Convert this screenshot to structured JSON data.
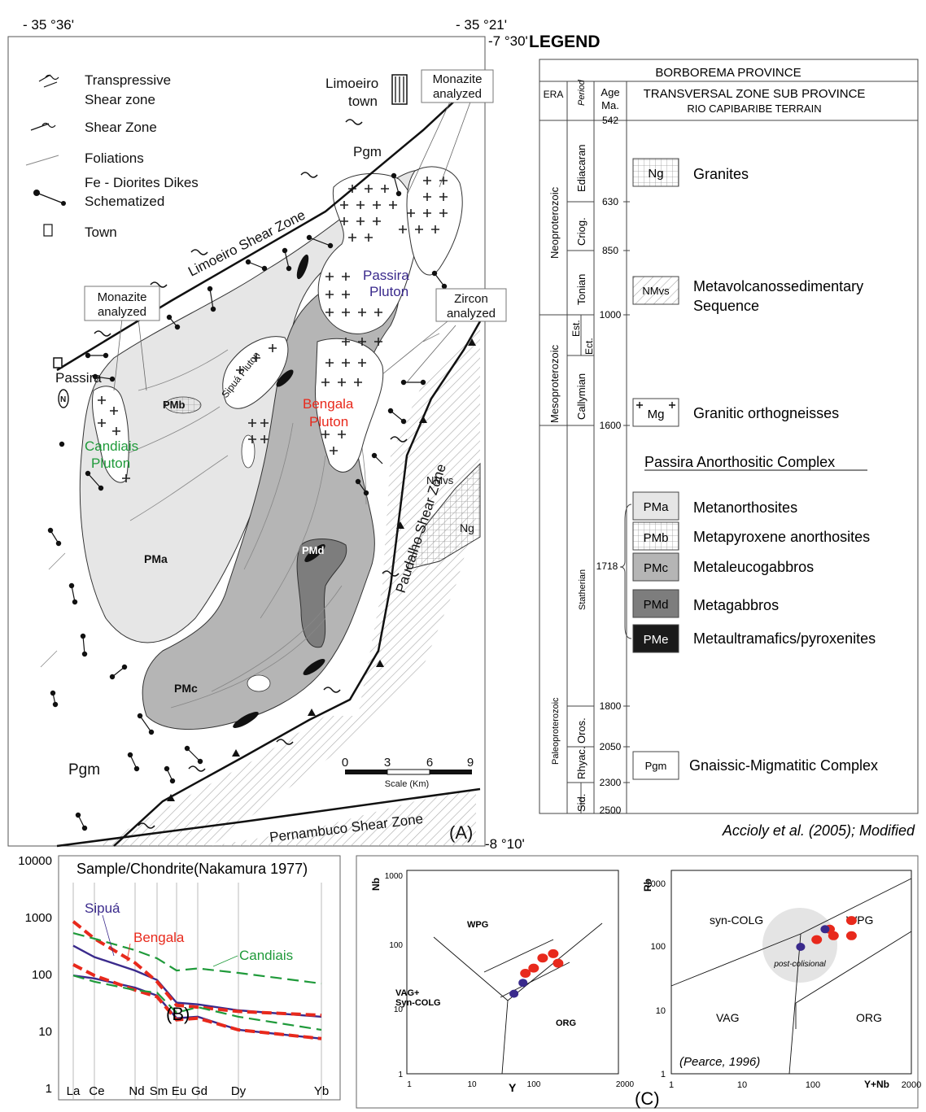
{
  "coords": {
    "lon_left": "- 35 °36'",
    "lon_right": "- 35 °21'",
    "lat_top": "-7 °30'",
    "lat_bottom": "-8 °10'"
  },
  "map": {
    "panel_label": "(A)",
    "key": [
      {
        "icon": "transpressive-shear-icon",
        "label": "Transpressive"
      },
      {
        "icon": "transpressive-shear-icon",
        "label": "Shear zone"
      },
      {
        "icon": "shear-zone-icon",
        "label": "Shear Zone"
      },
      {
        "icon": "foliation-icon",
        "label": "Foliations"
      },
      {
        "icon": "dike-icon",
        "label": "Fe - Diorites Dikes"
      },
      {
        "icon": "dike-icon",
        "label": "Schematized"
      },
      {
        "icon": "town-icon",
        "label": "Town"
      }
    ],
    "towns": {
      "limoeiro_1": "Limoeiro",
      "limoeiro_2": "town",
      "passira": "Passira"
    },
    "callouts": {
      "monazite_left_1": "Monazite",
      "monazite_left_2": "analyzed",
      "monazite_right_1": "Monazite",
      "monazite_right_2": "analyzed",
      "zircon_1": "Zircon",
      "zircon_2": "analyzed"
    },
    "shear_zones": {
      "limoeiro": "Limoeiro Shear Zone",
      "paudalho": "Paudalho Shear Zone",
      "pernambuco": "Pernambuco Shear Zone"
    },
    "plutons": {
      "passira_1": "Passira",
      "passira_2": "Pluton",
      "bengala_1": "Bengala",
      "bengala_2": "Pluton",
      "candiais_1": "Candiais",
      "candiais_2": "Pluton",
      "sipua": "Sipuá Pluton"
    },
    "pluton_colors": {
      "passira": "#3a2a8c",
      "bengala": "#e8291c",
      "candiais": "#1f9a3a"
    },
    "units": {
      "pgm_top": "Pgm",
      "pgm_bottom": "Pgm",
      "pma": "PMa",
      "pmb": "PMb",
      "pmc": "PMc",
      "pmd": "PMd",
      "nmvs": "NMvs",
      "ng": "Ng"
    },
    "scale": {
      "ticks": [
        "0",
        "3",
        "6",
        "9"
      ],
      "label": "Scale (Km)"
    }
  },
  "legend": {
    "title": "LEGEND",
    "province": "BORBOREMA PROVINCE",
    "head_era": "ERA",
    "head_period": "Period",
    "head_age_1": "Age",
    "head_age_2": "Ma.",
    "head_zone_1": "TRANSVERSAL ZONE SUB PROVINCE",
    "head_zone_2": "RIO CAPIBARIBE TERRAIN",
    "eras": [
      "Neoproterozoic",
      "Mesoproterozoic",
      "Paleoproterozoic"
    ],
    "periods": [
      "Ediacaran",
      "Criog.",
      "Tonian",
      "Ect.",
      "Est.",
      "Callymian",
      "Statherian",
      "Oros.",
      "Rhyac.",
      "Sid."
    ],
    "ages": [
      "542",
      "630",
      "850",
      "1000",
      "1600",
      "1718",
      "1800",
      "2050",
      "2300",
      "2500"
    ],
    "units": [
      {
        "code": "Ng",
        "label": "Granites"
      },
      {
        "code": "NMvs",
        "label": "Metavolcanossedimentary"
      },
      {
        "code": "",
        "label": "Sequence"
      },
      {
        "code": "Mg",
        "label": "Granitic orthogneisses"
      },
      {
        "code": "PMa",
        "label": "Metanorthosites"
      },
      {
        "code": "PMb",
        "label": "Metapyroxene anorthosites"
      },
      {
        "code": "PMc",
        "label": "Metaleucogabbros"
      },
      {
        "code": "PMd",
        "label": "Metagabbros"
      },
      {
        "code": "PMe",
        "label": "Metaultramafics/pyroxenites"
      },
      {
        "code": "Pgm",
        "label": "Gnaissic-Migmatitic Complex"
      }
    ],
    "complex_title": "Passira Anorthositic Complex",
    "unit_colors": {
      "PMa": "#e6e6e6",
      "PMc": "#b5b5b5",
      "PMd": "#7d7d7d",
      "PMe": "#1a1a1a"
    },
    "citation": "Accioly et al. (2005); Modified"
  },
  "panel_b": {
    "title": "Sample/Chondrite(Nakamura 1977)",
    "label": "(B)",
    "y_ticks": [
      "10000",
      "1000",
      "100",
      "10",
      "1"
    ],
    "x_labels": [
      "La",
      "Ce",
      "Nd",
      "Sm",
      "Eu",
      "Gd",
      "Dy",
      "Yb"
    ],
    "series_labels": {
      "sipua": "Sipuá",
      "bengala": "Bengala",
      "candiais": "Candiais"
    }
  },
  "panel_c": {
    "label": "(C)",
    "left": {
      "ylabel": "Nb",
      "xlabel": "Y",
      "fields": [
        "WPG",
        "VAG+",
        "Syn-COLG",
        "ORG"
      ]
    },
    "right": {
      "ylabel": "Rb",
      "xlabel": "Y+Nb",
      "fields": [
        "syn-COLG",
        "WPG",
        "VAG",
        "ORG"
      ],
      "post": "post-colisional",
      "citation": "(Pearce, 1996)"
    },
    "x_ticks": [
      "1",
      "10",
      "100",
      "2000"
    ],
    "y_ticks": [
      "1000",
      "100",
      "10",
      "1"
    ]
  },
  "chart_data": [
    {
      "type": "line",
      "categories": [
        "La",
        "Ce",
        "Nd",
        "Sm",
        "Eu",
        "Gd",
        "Dy",
        "Yb"
      ],
      "y_scale": "log",
      "ylim": [
        1,
        10000
      ],
      "series": [
        {
          "name": "Sipuá",
          "color": "#3a2a8c",
          "values": [
            300,
            190,
            110,
            75,
            30,
            28,
            22,
            17
          ]
        },
        {
          "name": "Sipuá",
          "color": "#3a2a8c",
          "values": [
            90,
            80,
            55,
            40,
            16,
            17,
            10,
            7
          ]
        },
        {
          "name": "Bengala",
          "color": "#e8291c",
          "values": [
            800,
            400,
            150,
            70,
            27,
            25,
            21,
            18
          ]
        },
        {
          "name": "Bengala",
          "color": "#e8291c",
          "values": [
            140,
            90,
            50,
            38,
            15,
            16,
            10,
            7
          ]
        },
        {
          "name": "Candiais",
          "color": "#1f9a3a",
          "values": [
            500,
            400,
            250,
            180,
            110,
            120,
            100,
            65
          ]
        },
        {
          "name": "Candiais",
          "color": "#1f9a3a",
          "values": [
            90,
            70,
            50,
            45,
            20,
            25,
            17,
            10
          ]
        }
      ]
    },
    {
      "type": "scatter",
      "x_scale": "log",
      "y_scale": "log",
      "xlim": [
        1,
        2000
      ],
      "ylim": [
        1,
        1000
      ],
      "xlabel": "Y",
      "ylabel": "Nb",
      "series": [
        {
          "name": "Bengala",
          "color": "#e8291c",
          "x": [
            60,
            80,
            110,
            160,
            190
          ],
          "y": [
            35,
            42,
            60,
            70,
            50
          ]
        },
        {
          "name": "Sipuá",
          "color": "#3a2a8c",
          "x": [
            40,
            55
          ],
          "y": [
            17,
            25
          ]
        }
      ]
    },
    {
      "type": "scatter",
      "x_scale": "log",
      "y_scale": "log",
      "xlim": [
        1,
        2000
      ],
      "ylim": [
        1,
        1000
      ],
      "xlabel": "Y+Nb",
      "ylabel": "Rb",
      "series": [
        {
          "name": "Bengala",
          "color": "#e8291c",
          "x": [
            100,
            150,
            170,
            300,
            300
          ],
          "y": [
            130,
            190,
            150,
            260,
            150
          ]
        },
        {
          "name": "Sipuá",
          "color": "#3a2a8c",
          "x": [
            60,
            130
          ],
          "y": [
            100,
            190
          ]
        }
      ]
    }
  ]
}
